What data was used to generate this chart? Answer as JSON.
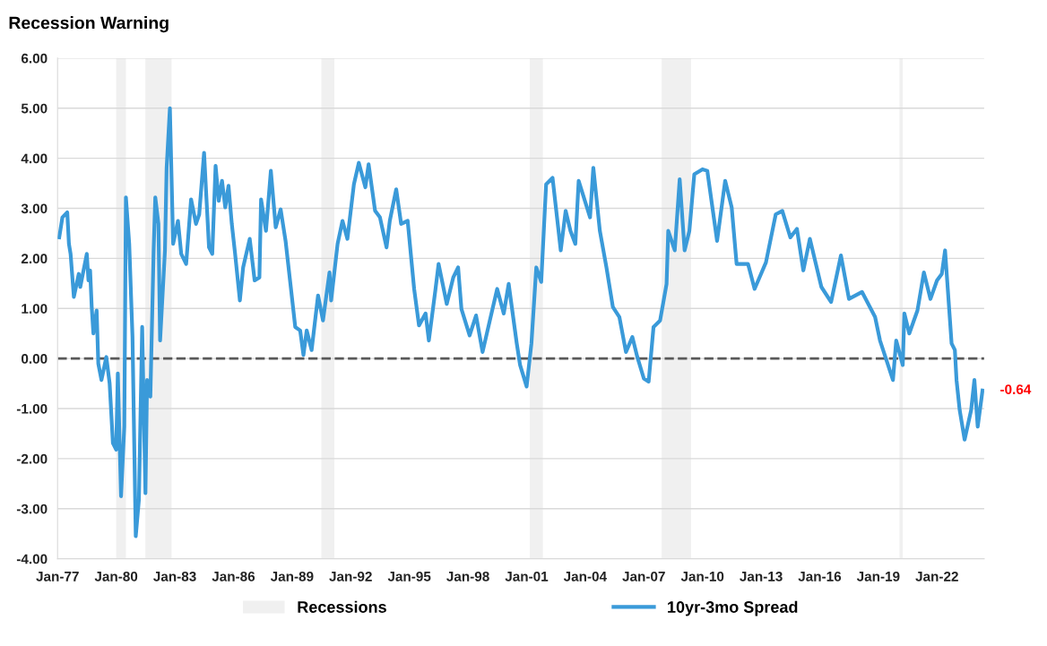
{
  "chart_data": {
    "type": "line",
    "title": "Recession Warning",
    "x": [
      "1977-02",
      "1977-04",
      "1977-07",
      "1977-08",
      "1977-09",
      "1977-11",
      "1978-02",
      "1978-03",
      "1978-07",
      "1978-08",
      "1978-09",
      "1978-10",
      "1978-11",
      "1979-01",
      "1979-02",
      "1979-04",
      "1979-07",
      "1979-09",
      "1979-11",
      "1980-01",
      "1980-02",
      "1980-04",
      "1980-06",
      "1980-07",
      "1980-09",
      "1980-11",
      "1981-01",
      "1981-03",
      "1981-05",
      "1981-07",
      "1981-08",
      "1981-10",
      "1981-12",
      "1982-01",
      "1982-03",
      "1982-04",
      "1982-07",
      "1982-08",
      "1982-10",
      "1982-12",
      "1983-03",
      "1983-05",
      "1983-08",
      "1983-11",
      "1984-02",
      "1984-04",
      "1984-07",
      "1984-10",
      "1984-12",
      "1985-02",
      "1985-04",
      "1985-06",
      "1985-08",
      "1985-10",
      "1985-12",
      "1986-02",
      "1986-05",
      "1986-07",
      "1986-11",
      "1987-02",
      "1987-05",
      "1987-06",
      "1987-09",
      "1987-12",
      "1988-03",
      "1988-06",
      "1988-09",
      "1988-12",
      "1989-03",
      "1989-06",
      "1989-08",
      "1989-10",
      "1990-01",
      "1990-05",
      "1990-08",
      "1990-12",
      "1991-01",
      "1991-05",
      "1991-08",
      "1991-11",
      "1992-03",
      "1992-06",
      "1992-10",
      "1992-12",
      "1993-04",
      "1993-07",
      "1993-11",
      "1994-01",
      "1994-05",
      "1994-08",
      "1994-12",
      "1995-04",
      "1995-07",
      "1995-11",
      "1996-01",
      "1996-05",
      "1996-07",
      "1996-12",
      "1997-04",
      "1997-07",
      "1997-09",
      "1998-02",
      "1998-06",
      "1998-10",
      "1999-03",
      "1999-07",
      "1999-11",
      "2000-02",
      "2000-07",
      "2000-09",
      "2001-01",
      "2001-04",
      "2001-07",
      "2001-10",
      "2002-01",
      "2002-05",
      "2002-10",
      "2003-01",
      "2003-04",
      "2003-07",
      "2003-09",
      "2004-04",
      "2004-06",
      "2004-10",
      "2005-02",
      "2005-06",
      "2005-10",
      "2006-02",
      "2006-06",
      "2006-09",
      "2007-01",
      "2007-04",
      "2007-07",
      "2007-11",
      "2008-03",
      "2008-04",
      "2008-08",
      "2008-11",
      "2009-02",
      "2009-05",
      "2009-08",
      "2010-01",
      "2010-04",
      "2010-10",
      "2011-03",
      "2011-07",
      "2011-10",
      "2012-05",
      "2012-09",
      "2013-04",
      "2013-10",
      "2014-02",
      "2014-07",
      "2014-11",
      "2015-03",
      "2015-07",
      "2016-02",
      "2016-08",
      "2017-02",
      "2017-07",
      "2018-03",
      "2018-11",
      "2019-02",
      "2019-06",
      "2019-10",
      "2019-12",
      "2020-04",
      "2020-05",
      "2020-08",
      "2021-01",
      "2021-05",
      "2021-09",
      "2022-01",
      "2022-04",
      "2022-06",
      "2022-08",
      "2022-10",
      "2022-12",
      "2023-01",
      "2023-03",
      "2023-06",
      "2023-10",
      "2023-12",
      "2024-02",
      "2024-05"
    ],
    "series": [
      {
        "name": "10yr-3mo Spread",
        "color": "#3a9ad9",
        "values": [
          2.42,
          2.82,
          2.92,
          2.29,
          2.09,
          1.23,
          1.69,
          1.43,
          2.09,
          1.56,
          1.76,
          1.03,
          0.5,
          0.96,
          -0.1,
          -0.43,
          0.03,
          -0.5,
          -1.69,
          -1.82,
          -0.3,
          -2.75,
          -1.36,
          3.22,
          2.29,
          0.43,
          -3.55,
          -2.82,
          0.63,
          -2.69,
          -0.43,
          -0.76,
          2.16,
          3.22,
          2.69,
          0.36,
          2.16,
          3.81,
          5.0,
          2.29,
          2.75,
          2.09,
          1.89,
          3.18,
          2.69,
          2.88,
          4.11,
          2.22,
          2.09,
          3.85,
          3.15,
          3.55,
          3.02,
          3.45,
          2.69,
          2.09,
          1.16,
          1.82,
          2.39,
          1.56,
          1.62,
          3.18,
          2.55,
          3.75,
          2.62,
          2.98,
          2.35,
          1.49,
          0.63,
          0.56,
          0.07,
          0.56,
          0.17,
          1.26,
          0.76,
          1.72,
          1.16,
          2.29,
          2.75,
          2.39,
          3.48,
          3.91,
          3.42,
          3.88,
          2.95,
          2.82,
          2.22,
          2.75,
          3.38,
          2.69,
          2.75,
          1.39,
          0.66,
          0.9,
          0.36,
          1.36,
          1.89,
          1.09,
          1.62,
          1.82,
          0.99,
          0.46,
          0.86,
          0.13,
          0.83,
          1.39,
          0.9,
          1.49,
          0.3,
          -0.13,
          -0.56,
          0.3,
          1.82,
          1.53,
          3.48,
          3.61,
          2.16,
          2.95,
          2.55,
          2.29,
          3.55,
          2.82,
          3.81,
          2.55,
          1.82,
          1.03,
          0.83,
          0.13,
          0.43,
          0.03,
          -0.4,
          -0.46,
          0.63,
          0.76,
          1.49,
          2.55,
          2.16,
          3.58,
          2.16,
          2.55,
          3.68,
          3.78,
          3.75,
          2.35,
          3.55,
          3.02,
          1.89,
          1.89,
          1.39,
          1.92,
          2.88,
          2.95,
          2.42,
          2.59,
          1.76,
          2.39,
          1.43,
          1.13,
          2.06,
          1.19,
          1.33,
          0.83,
          0.36,
          -0.03,
          -0.43,
          0.36,
          -0.13,
          0.9,
          0.5,
          0.96,
          1.72,
          1.19,
          1.56,
          1.69,
          2.16,
          1.23,
          0.3,
          0.17,
          -0.43,
          -1.03,
          -1.62,
          -1.03,
          -0.43,
          -1.36,
          -0.64
        ]
      }
    ],
    "xlim": [
      "1977-01",
      "2024-06"
    ],
    "xticks": [
      {
        "value": "1977-01",
        "label": "Jan-77"
      },
      {
        "value": "1980-01",
        "label": "Jan-80"
      },
      {
        "value": "1983-01",
        "label": "Jan-83"
      },
      {
        "value": "1986-01",
        "label": "Jan-86"
      },
      {
        "value": "1989-01",
        "label": "Jan-89"
      },
      {
        "value": "1992-01",
        "label": "Jan-92"
      },
      {
        "value": "1995-01",
        "label": "Jan-95"
      },
      {
        "value": "1998-01",
        "label": "Jan-98"
      },
      {
        "value": "2001-01",
        "label": "Jan-01"
      },
      {
        "value": "2004-01",
        "label": "Jan-04"
      },
      {
        "value": "2007-01",
        "label": "Jan-07"
      },
      {
        "value": "2010-01",
        "label": "Jan-10"
      },
      {
        "value": "2013-01",
        "label": "Jan-13"
      },
      {
        "value": "2016-01",
        "label": "Jan-16"
      },
      {
        "value": "2019-01",
        "label": "Jan-19"
      },
      {
        "value": "2022-01",
        "label": "Jan-22"
      }
    ],
    "ylim": [
      -4,
      6
    ],
    "yticks": [
      {
        "value": 6,
        "label": "6.00"
      },
      {
        "value": 5,
        "label": "5.00"
      },
      {
        "value": 4,
        "label": "4.00"
      },
      {
        "value": 3,
        "label": "3.00"
      },
      {
        "value": 2,
        "label": "2.00"
      },
      {
        "value": 1,
        "label": "1.00"
      },
      {
        "value": 0,
        "label": "0.00"
      },
      {
        "value": -1,
        "label": "-1.00"
      },
      {
        "value": -2,
        "label": "-2.00"
      },
      {
        "value": -3,
        "label": "-3.00"
      },
      {
        "value": -4,
        "label": "-4.00"
      }
    ],
    "bands": [
      {
        "axis": "x",
        "from": "1980-01",
        "to": "1980-07",
        "label": "Recessions",
        "color": "#f0f0f0"
      },
      {
        "axis": "x",
        "from": "1981-07",
        "to": "1982-11",
        "color": "#f0f0f0"
      },
      {
        "axis": "x",
        "from": "1990-07",
        "to": "1991-03",
        "color": "#f0f0f0"
      },
      {
        "axis": "x",
        "from": "2001-03",
        "to": "2001-11",
        "color": "#f0f0f0"
      },
      {
        "axis": "x",
        "from": "2007-12",
        "to": "2009-06",
        "color": "#f0f0f0"
      },
      {
        "axis": "x",
        "from": "2020-02",
        "to": "2020-04",
        "color": "#f0f0f0"
      }
    ],
    "ref_lines": [
      {
        "axis": "y",
        "value": 0,
        "color": "#595959",
        "line_style": "dashed"
      }
    ],
    "annotations": [
      {
        "text": "-0.64",
        "x": "2024-05",
        "y": -0.64
      }
    ],
    "grid": "y",
    "legend": "bottom",
    "marker": "none",
    "line_style": "solid"
  }
}
